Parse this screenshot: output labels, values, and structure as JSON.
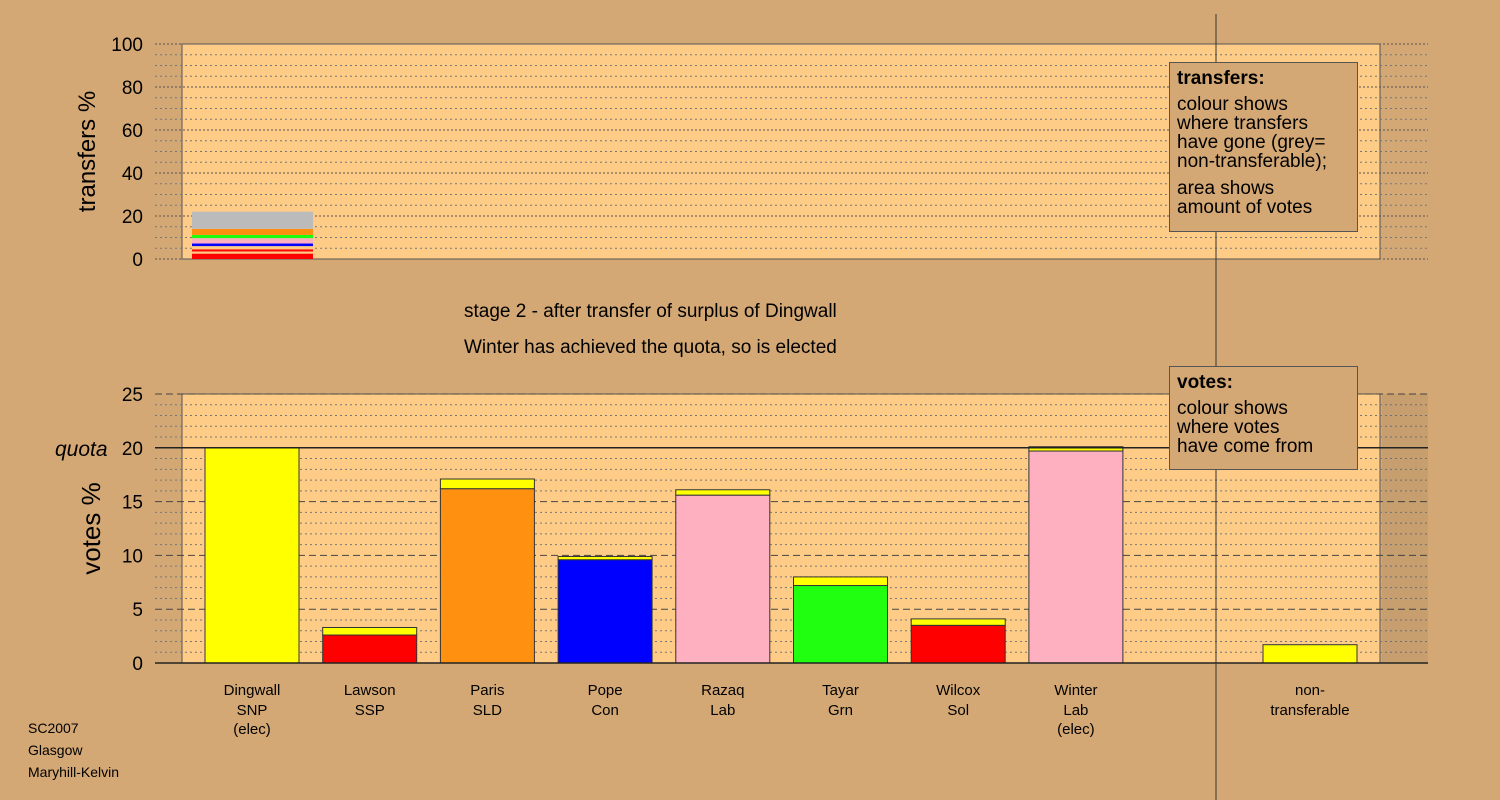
{
  "stage_title": "stage 2 - after transfer of surplus of Dingwall",
  "stage_note": "Winter has achieved the quota, so is elected",
  "transfers_legend": {
    "title": "transfers:",
    "lines_a": [
      "colour shows",
      "where transfers",
      "have gone (grey=",
      "non-transferable);"
    ],
    "lines_b": [
      "area shows",
      "amount of votes"
    ]
  },
  "votes_legend": {
    "title": "votes:",
    "lines": [
      "colour shows",
      "where votes",
      "have come from"
    ]
  },
  "footer": [
    "SC2007",
    "Glasgow",
    "Maryhill-Kelvin"
  ],
  "colors": {
    "background": "#D4A875",
    "plot": "#FFCC88",
    "SNP": "#FFFF00",
    "SSP": "#FF0000",
    "SLD": "#FF9010",
    "Con": "#0000FF",
    "Lab": "#FFB0C0",
    "Grn": "#20FF10",
    "Sol": "#FF0000",
    "nontransferable": "#BBBBBB"
  },
  "chart_data": [
    {
      "type": "bar",
      "ylabel": "transfers %",
      "ylim": [
        0,
        100
      ],
      "yticks": [
        0,
        20,
        40,
        60,
        80,
        100
      ],
      "stack_segments": [
        {
          "color": "#FF0000",
          "value": 2.5
        },
        {
          "color": "#FFCC88",
          "value": 1.0
        },
        {
          "color": "#FF0000",
          "value": 1.0
        },
        {
          "color": "#FFCC88",
          "value": 1.5
        },
        {
          "color": "#0000FF",
          "value": 1.2
        },
        {
          "color": "#FFB0C0",
          "value": 2.5
        },
        {
          "color": "#20FF10",
          "value": 1.5
        },
        {
          "color": "#FF9010",
          "value": 2.8
        },
        {
          "color": "#BBBBBB",
          "value": 8.0
        }
      ]
    },
    {
      "type": "bar",
      "ylabel": "votes %",
      "ylim": [
        0,
        25
      ],
      "yticks": [
        0,
        5,
        10,
        15,
        20,
        25
      ],
      "quota": 20,
      "quota_label": "quota",
      "categories": [
        {
          "name": "Dingwall",
          "party": "SNP",
          "note": "(elec)",
          "base": 20.0,
          "transfer": 0,
          "color": "#FFFF00"
        },
        {
          "name": "Lawson",
          "party": "SSP",
          "note": "",
          "base": 2.6,
          "transfer": 0.7,
          "color": "#FF0000"
        },
        {
          "name": "Paris",
          "party": "SLD",
          "note": "",
          "base": 16.2,
          "transfer": 0.9,
          "color": "#FF9010"
        },
        {
          "name": "Pope",
          "party": "Con",
          "note": "",
          "base": 9.6,
          "transfer": 0.3,
          "color": "#0000FF"
        },
        {
          "name": "Razaq",
          "party": "Lab",
          "note": "",
          "base": 15.6,
          "transfer": 0.5,
          "color": "#FFB0C0"
        },
        {
          "name": "Tayar",
          "party": "Grn",
          "note": "",
          "base": 7.2,
          "transfer": 0.8,
          "color": "#20FF10"
        },
        {
          "name": "Wilcox",
          "party": "Sol",
          "note": "",
          "base": 3.5,
          "transfer": 0.6,
          "color": "#FF0000"
        },
        {
          "name": "Winter",
          "party": "Lab",
          "note": "(elec)",
          "base": 19.7,
          "transfer": 0.4,
          "color": "#FFB0C0"
        }
      ],
      "nontransferable": {
        "label": [
          "non-",
          "transferable"
        ],
        "value": 1.7,
        "color": "#FFFF00"
      }
    }
  ]
}
